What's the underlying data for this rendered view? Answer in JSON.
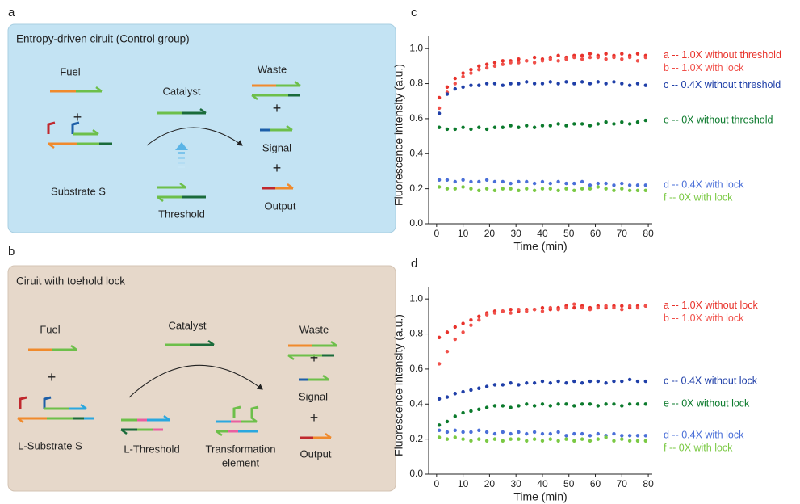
{
  "panels": [
    {
      "letter": "a",
      "title": "Entropy-driven ciruit (Control group)",
      "labels": [
        "Fuel",
        "+",
        "Substrate S",
        "Catalyst",
        "Threshold",
        "Waste",
        "+",
        "Signal",
        "+",
        "Output"
      ]
    },
    {
      "letter": "b",
      "title": "Ciruit with toehold lock",
      "labels": [
        "Fuel",
        "+",
        "L-Substrate S",
        "Catalyst",
        "L-Threshold",
        "Transformation",
        "element",
        "Waste",
        "+",
        "Signal",
        "+",
        "Output"
      ]
    }
  ],
  "chart_data": [
    {
      "type": "scatter",
      "panel_label": "c",
      "xlabel": "Time (min)",
      "ylabel": "Fluorescence intensity (a.u.)",
      "xlim": [
        -3,
        81.5
      ],
      "ylim": [
        0,
        1.07
      ],
      "xticks": [
        0,
        10,
        20,
        30,
        40,
        50,
        60,
        70,
        80
      ],
      "yticks": [
        {
          "value": 0,
          "label": "0.0"
        },
        0.2,
        0.4,
        0.6,
        0.8,
        {
          "value": 1,
          "label": "1.0"
        }
      ],
      "x": [
        1,
        4,
        7,
        10,
        13,
        16,
        19,
        22,
        25,
        28,
        31,
        34,
        37,
        40,
        43,
        46,
        49,
        52,
        55,
        58,
        61,
        64,
        67,
        70,
        73,
        76,
        79
      ],
      "series": [
        {
          "name": "a -- 1.0X without threshold",
          "color": "#e8322b",
          "values": [
            0.72,
            0.78,
            0.83,
            0.86,
            0.88,
            0.9,
            0.91,
            0.92,
            0.93,
            0.93,
            0.94,
            0.93,
            0.95,
            0.94,
            0.95,
            0.96,
            0.95,
            0.96,
            0.96,
            0.97,
            0.96,
            0.97,
            0.96,
            0.97,
            0.96,
            0.97,
            0.96
          ]
        },
        {
          "name": "b -- 1.0X with lock",
          "color": "#f0504a",
          "values": [
            0.66,
            0.75,
            0.8,
            0.84,
            0.86,
            0.88,
            0.89,
            0.9,
            0.91,
            0.92,
            0.92,
            0.93,
            0.92,
            0.93,
            0.94,
            0.93,
            0.94,
            0.95,
            0.94,
            0.95,
            0.95,
            0.94,
            0.95,
            0.94,
            0.95,
            0.93,
            0.95
          ]
        },
        {
          "name": "c -- 0.4X without threshold",
          "color": "#1f3fa8",
          "values": [
            0.63,
            0.74,
            0.77,
            0.78,
            0.79,
            0.79,
            0.8,
            0.8,
            0.79,
            0.8,
            0.8,
            0.81,
            0.8,
            0.8,
            0.81,
            0.8,
            0.81,
            0.8,
            0.81,
            0.8,
            0.81,
            0.8,
            0.81,
            0.8,
            0.79,
            0.8,
            0.79
          ]
        },
        {
          "name": "e -- 0X without threshold",
          "color": "#0b7a2c",
          "values": [
            0.55,
            0.54,
            0.54,
            0.55,
            0.54,
            0.55,
            0.54,
            0.55,
            0.55,
            0.56,
            0.55,
            0.56,
            0.55,
            0.56,
            0.56,
            0.57,
            0.56,
            0.57,
            0.57,
            0.56,
            0.57,
            0.58,
            0.57,
            0.58,
            0.57,
            0.58,
            0.59
          ]
        },
        {
          "name": "d -- 0.4X with lock",
          "color": "#4a6fd8",
          "values": [
            0.25,
            0.25,
            0.24,
            0.25,
            0.24,
            0.24,
            0.25,
            0.24,
            0.24,
            0.23,
            0.24,
            0.24,
            0.23,
            0.24,
            0.23,
            0.24,
            0.23,
            0.23,
            0.24,
            0.22,
            0.23,
            0.23,
            0.22,
            0.23,
            0.22,
            0.22,
            0.22
          ]
        },
        {
          "name": "f -- 0X with lock",
          "color": "#7ac943",
          "values": [
            0.21,
            0.2,
            0.2,
            0.21,
            0.2,
            0.19,
            0.2,
            0.19,
            0.2,
            0.2,
            0.19,
            0.2,
            0.19,
            0.2,
            0.2,
            0.19,
            0.2,
            0.19,
            0.2,
            0.2,
            0.21,
            0.2,
            0.19,
            0.2,
            0.19,
            0.19,
            0.19
          ]
        }
      ]
    },
    {
      "type": "scatter",
      "panel_label": "d",
      "xlabel": "Time (min)",
      "ylabel": "Fluorescence intensity (a.u.)",
      "xlim": [
        -3,
        81.5
      ],
      "ylim": [
        0,
        1.07
      ],
      "xticks": [
        0,
        10,
        20,
        30,
        40,
        50,
        60,
        70,
        80
      ],
      "yticks": [
        {
          "value": 0,
          "label": "0.0"
        },
        0.2,
        0.4,
        0.6,
        0.8,
        {
          "value": 1,
          "label": "1.0"
        }
      ],
      "x": [
        1,
        4,
        7,
        10,
        13,
        16,
        19,
        22,
        25,
        28,
        31,
        34,
        37,
        40,
        43,
        46,
        49,
        52,
        55,
        58,
        61,
        64,
        67,
        70,
        73,
        76,
        79
      ],
      "series": [
        {
          "name": "a -- 1.0X without lock",
          "color": "#e8322b",
          "values": [
            0.78,
            0.81,
            0.84,
            0.86,
            0.88,
            0.9,
            0.92,
            0.93,
            0.93,
            0.94,
            0.93,
            0.94,
            0.94,
            0.95,
            0.94,
            0.95,
            0.96,
            0.95,
            0.96,
            0.95,
            0.96,
            0.95,
            0.96,
            0.96,
            0.95,
            0.96,
            0.96
          ]
        },
        {
          "name": "b -- 1.0X with lock",
          "color": "#f0504a",
          "values": [
            0.63,
            0.7,
            0.77,
            0.81,
            0.85,
            0.88,
            0.91,
            0.92,
            0.93,
            0.92,
            0.94,
            0.93,
            0.94,
            0.93,
            0.95,
            0.94,
            0.95,
            0.97,
            0.95,
            0.94,
            0.95,
            0.96,
            0.95,
            0.94,
            0.96,
            0.95,
            0.96
          ]
        },
        {
          "name": "c -- 0.4X without lock",
          "color": "#1f3fa8",
          "values": [
            0.43,
            0.44,
            0.46,
            0.47,
            0.48,
            0.49,
            0.5,
            0.51,
            0.51,
            0.52,
            0.51,
            0.52,
            0.52,
            0.53,
            0.52,
            0.53,
            0.52,
            0.53,
            0.52,
            0.53,
            0.53,
            0.52,
            0.53,
            0.53,
            0.54,
            0.53,
            0.53
          ]
        },
        {
          "name": "e -- 0X without lock",
          "color": "#0b7a2c",
          "values": [
            0.28,
            0.3,
            0.33,
            0.35,
            0.36,
            0.37,
            0.38,
            0.39,
            0.39,
            0.38,
            0.39,
            0.4,
            0.39,
            0.4,
            0.39,
            0.4,
            0.4,
            0.39,
            0.4,
            0.4,
            0.39,
            0.4,
            0.4,
            0.39,
            0.4,
            0.4,
            0.4
          ]
        },
        {
          "name": "d -- 0.4X with lock",
          "color": "#4a6fd8",
          "values": [
            0.25,
            0.24,
            0.25,
            0.24,
            0.24,
            0.25,
            0.24,
            0.23,
            0.24,
            0.23,
            0.24,
            0.23,
            0.24,
            0.23,
            0.23,
            0.24,
            0.22,
            0.23,
            0.23,
            0.22,
            0.23,
            0.22,
            0.23,
            0.22,
            0.22,
            0.22,
            0.22
          ]
        },
        {
          "name": "f -- 0X with lock",
          "color": "#7ac943",
          "values": [
            0.21,
            0.2,
            0.21,
            0.2,
            0.19,
            0.2,
            0.19,
            0.2,
            0.19,
            0.2,
            0.2,
            0.19,
            0.2,
            0.19,
            0.2,
            0.19,
            0.2,
            0.19,
            0.2,
            0.19,
            0.2,
            0.21,
            0.19,
            0.2,
            0.19,
            0.19,
            0.19
          ]
        }
      ]
    }
  ]
}
